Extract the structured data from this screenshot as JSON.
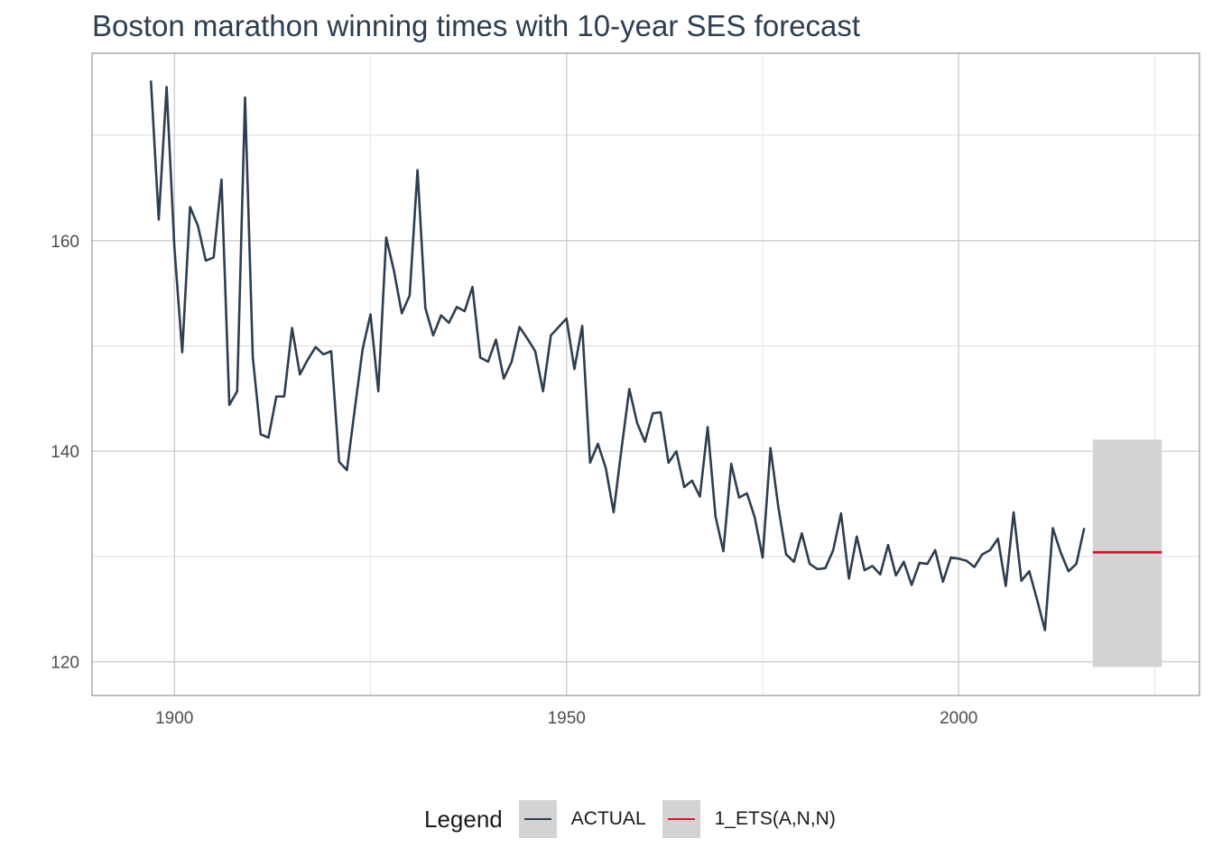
{
  "chart_data": {
    "type": "line",
    "title": "Boston marathon winning times with 10-year SES forecast",
    "xlabel": "",
    "ylabel": "",
    "xlim": [
      1889.5,
      2030.7
    ],
    "ylim": [
      116.8,
      177.8
    ],
    "x_ticks": [
      1900,
      1950,
      2000
    ],
    "x_tick_labels": [
      "1900",
      "1950",
      "2000"
    ],
    "y_ticks": [
      120,
      140,
      160
    ],
    "y_tick_labels": [
      "120",
      "140",
      "160"
    ],
    "y_minor_gridlines": [
      130,
      150,
      170
    ],
    "x_minor_gridlines": [
      1925,
      1975,
      2025
    ],
    "grid": true,
    "series": [
      {
        "name": "ACTUAL",
        "color": "#2c3e50",
        "x": [
          1897,
          1898,
          1899,
          1900,
          1901,
          1902,
          1903,
          1904,
          1905,
          1906,
          1907,
          1908,
          1909,
          1910,
          1911,
          1912,
          1913,
          1914,
          1915,
          1916,
          1917,
          1918,
          1919,
          1920,
          1921,
          1922,
          1923,
          1924,
          1925,
          1926,
          1927,
          1928,
          1929,
          1930,
          1931,
          1932,
          1933,
          1934,
          1935,
          1936,
          1937,
          1938,
          1939,
          1940,
          1941,
          1942,
          1943,
          1944,
          1945,
          1946,
          1947,
          1948,
          1949,
          1950,
          1951,
          1952,
          1953,
          1954,
          1955,
          1956,
          1957,
          1958,
          1959,
          1960,
          1961,
          1962,
          1963,
          1964,
          1965,
          1966,
          1967,
          1968,
          1969,
          1970,
          1971,
          1972,
          1973,
          1974,
          1975,
          1976,
          1977,
          1978,
          1979,
          1980,
          1981,
          1982,
          1983,
          1984,
          1985,
          1986,
          1987,
          1988,
          1989,
          1990,
          1991,
          1992,
          1993,
          1994,
          1995,
          1996,
          1997,
          1998,
          1999,
          2000,
          2001,
          2002,
          2003,
          2004,
          2005,
          2006,
          2007,
          2008,
          2009,
          2010,
          2011,
          2012,
          2013,
          2014,
          2015,
          2016
        ],
        "values": [
          175.2,
          162.0,
          174.6,
          159.4,
          149.4,
          163.2,
          161.4,
          158.1,
          158.4,
          165.8,
          144.4,
          145.7,
          173.6,
          148.9,
          141.6,
          141.3,
          145.2,
          145.2,
          151.7,
          147.3,
          148.7,
          149.9,
          149.2,
          149.5,
          139.0,
          138.2,
          144.0,
          149.7,
          153.0,
          145.7,
          160.3,
          157.1,
          153.1,
          154.8,
          166.7,
          153.6,
          151.0,
          152.9,
          152.2,
          153.7,
          153.3,
          155.6,
          148.9,
          148.5,
          150.6,
          146.9,
          148.5,
          151.8,
          150.7,
          149.5,
          145.7,
          151.0,
          151.8,
          152.6,
          147.8,
          151.9,
          138.9,
          140.7,
          138.4,
          134.2,
          140.2,
          145.9,
          142.7,
          140.9,
          143.6,
          143.7,
          138.9,
          140.0,
          136.6,
          137.2,
          135.7,
          142.3,
          133.8,
          130.5,
          138.8,
          135.6,
          136.0,
          133.7,
          129.9,
          140.3,
          134.7,
          130.2,
          129.5,
          132.2,
          129.3,
          128.8,
          128.9,
          130.6,
          134.1,
          127.9,
          131.9,
          128.7,
          129.1,
          128.3,
          131.1,
          128.2,
          129.5,
          127.3,
          129.4,
          129.3,
          130.6,
          127.6,
          129.9,
          129.8,
          129.6,
          129.0,
          130.2,
          130.6,
          131.7,
          127.2,
          134.2,
          127.7,
          128.6,
          125.9,
          123.0,
          132.7,
          130.4,
          128.6,
          129.3,
          132.7
        ]
      },
      {
        "name": "1_ETS(A,N,N)",
        "color": "#cc1c2c",
        "x": [
          2017,
          2026
        ],
        "values": [
          130.4,
          130.4
        ],
        "interval_lo": 119.5,
        "interval_hi": 141.1,
        "interval_color": "#d3d3d3"
      }
    ]
  },
  "legend": {
    "title": "Legend",
    "items": [
      {
        "label": "ACTUAL",
        "color": "#2c3e50"
      },
      {
        "label": "1_ETS(A,N,N)",
        "color": "#cc1c2c"
      }
    ]
  }
}
